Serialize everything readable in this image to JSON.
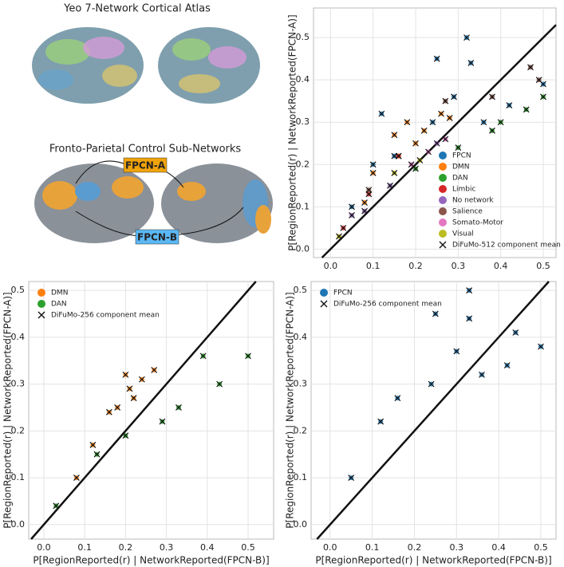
{
  "atlas_panel": {
    "title": "Yeo 7-Network Cortical Atlas",
    "subtitle": "Fronto-Parietal Control Sub-Networks",
    "labels": [
      "FPCN-A",
      "FPCN-B"
    ]
  },
  "chart_data": [
    {
      "type": "scatter",
      "ylabel": "P[RegionReported(r) | NetworkReported(FPCN-A)]",
      "xlim": [
        -0.04,
        0.53
      ],
      "ylim": [
        -0.02,
        0.57
      ],
      "xticks": [
        {
          "value": 0,
          "label": "0.0"
        },
        0.1,
        0.2,
        0.3,
        0.4,
        0.5
      ],
      "yticks": [
        {
          "value": 0,
          "label": "0.0"
        },
        0.1,
        0.2,
        0.3,
        0.4,
        0.5
      ],
      "grid": true,
      "legend": "lower right",
      "marker_legend": "DiFuMo-512 component mean",
      "series": [
        {
          "name": "FPCN",
          "color": "#1f77b4",
          "x": [
            0.32,
            0.25,
            0.33,
            0.12,
            0.29,
            0.5,
            0.42,
            0.15,
            0.24,
            0.1,
            0.05,
            0.36
          ],
          "values": [
            0.5,
            0.45,
            0.44,
            0.32,
            0.36,
            0.39,
            0.34,
            0.22,
            0.3,
            0.2,
            0.1,
            0.3
          ]
        },
        {
          "name": "DMN",
          "color": "#ff7f0e",
          "x": [
            0.15,
            0.18,
            0.2,
            0.22,
            0.26,
            0.1,
            0.08,
            0.28,
            0.16
          ],
          "values": [
            0.27,
            0.3,
            0.25,
            0.28,
            0.32,
            0.18,
            0.11,
            0.31,
            0.22
          ]
        },
        {
          "name": "DAN",
          "color": "#2ca02c",
          "x": [
            0.4,
            0.46,
            0.5,
            0.3,
            0.2,
            0.38
          ],
          "values": [
            0.3,
            0.33,
            0.36,
            0.24,
            0.19,
            0.28
          ]
        },
        {
          "name": "Limbic",
          "color": "#d62728",
          "x": [
            0.09,
            0.03,
            0.16
          ],
          "values": [
            0.13,
            0.05,
            0.22
          ]
        },
        {
          "name": "No network",
          "color": "#9467bd",
          "x": [
            0.05,
            0.08,
            0.14,
            0.25
          ],
          "values": [
            0.08,
            0.09,
            0.15,
            0.25
          ]
        },
        {
          "name": "Salience",
          "color": "#8c564b",
          "x": [
            0.47,
            0.49,
            0.38,
            0.27,
            0.09
          ],
          "values": [
            0.43,
            0.4,
            0.36,
            0.35,
            0.14
          ]
        },
        {
          "name": "Somato-Motor",
          "color": "#e377c2",
          "x": [
            0.19,
            0.23,
            0.27
          ],
          "values": [
            0.2,
            0.23,
            0.26
          ]
        },
        {
          "name": "Visual",
          "color": "#bcbd22",
          "x": [
            0.15,
            0.21,
            0.02
          ],
          "values": [
            0.18,
            0.21,
            0.03
          ]
        }
      ]
    },
    {
      "type": "scatter",
      "xlabel": "P[RegionReported(r) | NetworkReported(FPCN-B)]",
      "ylabel": "P[RegionReported(r) | NetworkReported(FPCN-A)]",
      "xlim": [
        -0.037,
        0.5625
      ],
      "ylim": [
        -0.031,
        0.519
      ],
      "xticks": [
        {
          "value": 0,
          "label": "0.0"
        },
        0.1,
        0.2,
        0.3,
        0.4,
        0.5
      ],
      "yticks": [
        {
          "value": 0,
          "label": "0.0"
        },
        0.1,
        0.2,
        0.3,
        0.4,
        0.5
      ],
      "grid": true,
      "legend": "upper left",
      "marker_legend": "DiFuMo-256 component mean",
      "series": [
        {
          "name": "DMN",
          "color": "#ff7f0e",
          "x": [
            0.2,
            0.18,
            0.21,
            0.24,
            0.27,
            0.16,
            0.12,
            0.08,
            0.22
          ],
          "values": [
            0.32,
            0.25,
            0.29,
            0.31,
            0.33,
            0.24,
            0.17,
            0.1,
            0.27
          ]
        },
        {
          "name": "DAN",
          "color": "#2ca02c",
          "x": [
            0.29,
            0.43,
            0.5,
            0.33,
            0.2,
            0.13,
            0.03,
            0.39
          ],
          "values": [
            0.22,
            0.3,
            0.36,
            0.25,
            0.19,
            0.15,
            0.04,
            0.36
          ]
        }
      ]
    },
    {
      "type": "scatter",
      "xlabel": "P[RegionReported(r) | NetworkReported(FPCN-B)]",
      "ylabel": "P[RegionReported(r) | NetworkReported(FPCN-A)]",
      "xlim": [
        -0.045,
        0.536
      ],
      "ylim": [
        -0.031,
        0.519
      ],
      "xticks": [
        {
          "value": 0,
          "label": "0.0"
        },
        0.1,
        0.2,
        0.3,
        0.4,
        0.5
      ],
      "yticks": [
        {
          "value": 0,
          "label": "0.0"
        },
        0.1,
        0.2,
        0.3,
        0.4,
        0.5
      ],
      "grid": true,
      "legend": "upper left",
      "marker_legend": "DiFuMo-256 component mean",
      "series": [
        {
          "name": "FPCN",
          "color": "#1f77b4",
          "x": [
            0.33,
            0.25,
            0.33,
            0.12,
            0.3,
            0.44,
            0.5,
            0.24,
            0.05,
            0.36,
            0.42,
            0.16
          ],
          "values": [
            0.5,
            0.45,
            0.44,
            0.22,
            0.37,
            0.41,
            0.38,
            0.3,
            0.1,
            0.32,
            0.34,
            0.27
          ]
        }
      ]
    }
  ]
}
